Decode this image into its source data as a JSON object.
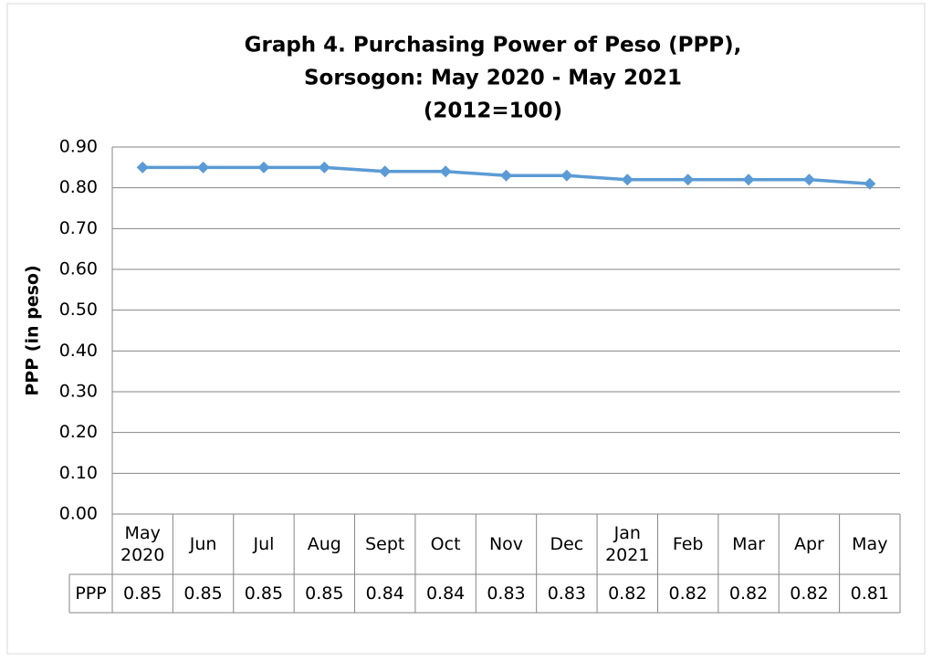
{
  "chart_data": {
    "type": "line",
    "title": [
      "Graph 4. Purchasing Power of Peso (PPP),",
      "Sorsogon: May 2020 - May 2021",
      "(2012=100)"
    ],
    "y_label": "PPP (in peso)",
    "categories": [
      "May 2020",
      "Jun",
      "Jul",
      "Aug",
      "Sept",
      "Oct",
      "Nov",
      "Dec",
      "Jan 2021",
      "Feb",
      "Mar",
      "Apr",
      "May"
    ],
    "series": [
      {
        "name": "PPP",
        "color": "#5b9bd5",
        "values": [
          0.85,
          0.85,
          0.85,
          0.85,
          0.84,
          0.84,
          0.83,
          0.83,
          0.82,
          0.82,
          0.82,
          0.82,
          0.81
        ]
      }
    ],
    "ylim": [
      0,
      0.9
    ],
    "yticks": [
      {
        "value": 0,
        "label": "0.00"
      },
      {
        "value": 0.1,
        "label": "0.10"
      },
      {
        "value": 0.2,
        "label": "0.20"
      },
      {
        "value": 0.3,
        "label": "0.30"
      },
      {
        "value": 0.4,
        "label": "0.40"
      },
      {
        "value": 0.5,
        "label": "0.50"
      },
      {
        "value": 0.6,
        "label": "0.60"
      },
      {
        "value": 0.7,
        "label": "0.70"
      },
      {
        "value": 0.8,
        "label": "0.80"
      },
      {
        "value": 0.9,
        "label": "0.90"
      }
    ],
    "grid": true,
    "data_table": true
  }
}
